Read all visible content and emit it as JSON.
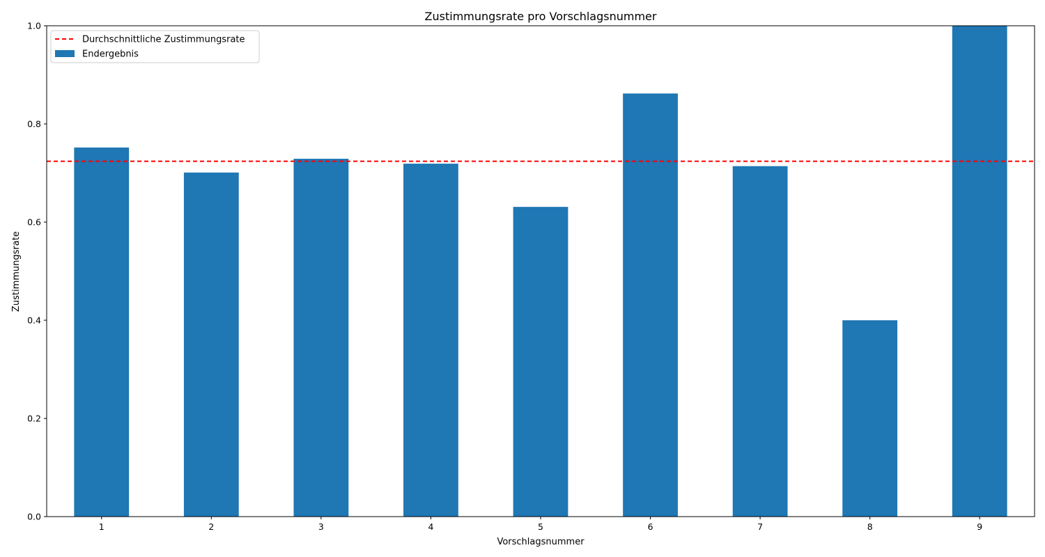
{
  "chart_data": {
    "type": "bar",
    "title": "Zustimmungsrate pro Vorschlagsnummer",
    "xlabel": "Vorschlagsnummer",
    "ylabel": "Zustimmungsrate",
    "categories": [
      "1",
      "2",
      "3",
      "4",
      "5",
      "6",
      "7",
      "8",
      "9"
    ],
    "series": [
      {
        "name": "Endergebnis",
        "color": "#1f77b4",
        "values": [
          0.752,
          0.701,
          0.729,
          0.719,
          0.631,
          0.862,
          0.714,
          0.4,
          1.0
        ]
      }
    ],
    "reference_line": {
      "name": "Durchschnittliche Zustimmungsrate",
      "value": 0.724,
      "color": "#ff0000",
      "style": "dashed"
    },
    "ylim": [
      0,
      1.0
    ],
    "yticks": [
      0.0,
      0.2,
      0.4,
      0.6,
      0.8,
      1.0
    ],
    "ytick_labels": [
      "0.0",
      "0.2",
      "0.4",
      "0.6",
      "0.8",
      "1.0"
    ],
    "grid": false,
    "legend_position": "top-left"
  }
}
